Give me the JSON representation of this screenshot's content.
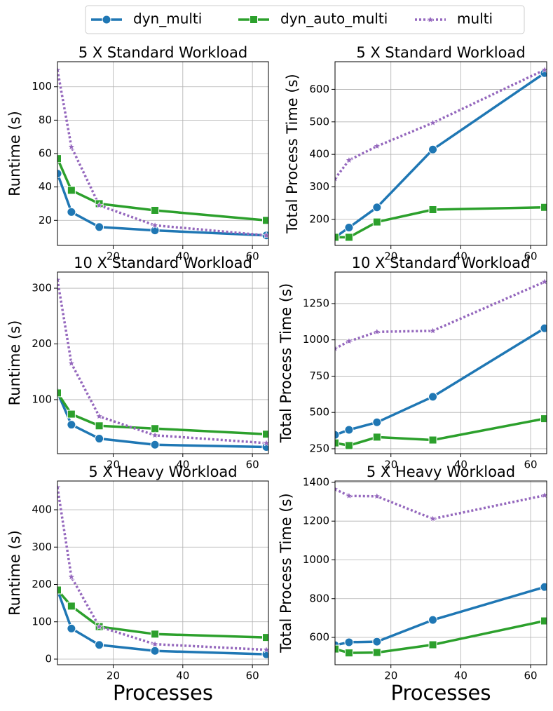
{
  "chart_data": [
    {
      "type": "line",
      "title": "5 X Standard Workload",
      "ylabel": "Runtime (s)",
      "x": [
        4,
        8,
        16,
        32,
        64
      ],
      "xlim": [
        4,
        64.6
      ],
      "xticks": [
        20,
        40,
        60
      ],
      "ylim": [
        5,
        115
      ],
      "yticks": [
        20,
        40,
        60,
        80,
        100
      ],
      "grid": true,
      "series": [
        {
          "name": "dyn_multi",
          "color": "#1f77b4",
          "marker": "circle",
          "linestyle": "solid",
          "values": [
            48,
            25,
            16,
            14,
            11
          ]
        },
        {
          "name": "dyn_auto_multi",
          "color": "#2ca02c",
          "marker": "square",
          "linestyle": "solid",
          "values": [
            57,
            38,
            30,
            26,
            20
          ]
        },
        {
          "name": "multi",
          "color": "#9467bd",
          "marker": "star",
          "linestyle": "dotted",
          "values": [
            110,
            64,
            29,
            17,
            11
          ]
        }
      ]
    },
    {
      "type": "line",
      "title": "5 X Standard Workload",
      "ylabel": "Total Process Time (s)",
      "x": [
        4,
        8,
        16,
        32,
        64
      ],
      "xlim": [
        4,
        64.6
      ],
      "xticks": [
        20,
        40,
        60
      ],
      "ylim": [
        120,
        685
      ],
      "yticks": [
        200,
        300,
        400,
        500,
        600
      ],
      "grid": true,
      "series": [
        {
          "name": "dyn_multi",
          "color": "#1f77b4",
          "marker": "circle",
          "linestyle": "solid",
          "values": [
            145,
            175,
            237,
            415,
            650
          ]
        },
        {
          "name": "dyn_auto_multi",
          "color": "#2ca02c",
          "marker": "square",
          "linestyle": "solid",
          "values": [
            145,
            145,
            192,
            230,
            237
          ]
        },
        {
          "name": "multi",
          "color": "#9467bd",
          "marker": "star",
          "linestyle": "dotted",
          "values": [
            325,
            382,
            425,
            497,
            660
          ]
        }
      ]
    },
    {
      "type": "line",
      "title": "10 X Standard Workload",
      "ylabel": "Runtime (s)",
      "x": [
        4,
        8,
        16,
        32,
        64
      ],
      "xlim": [
        4,
        64.6
      ],
      "xticks": [
        20,
        40,
        60
      ],
      "ylim": [
        3,
        329
      ],
      "yticks": [
        100,
        200,
        300
      ],
      "grid": true,
      "series": [
        {
          "name": "dyn_multi",
          "color": "#1f77b4",
          "marker": "circle",
          "linestyle": "solid",
          "values": [
            113,
            55,
            30,
            19,
            15
          ]
        },
        {
          "name": "dyn_auto_multi",
          "color": "#2ca02c",
          "marker": "square",
          "linestyle": "solid",
          "values": [
            112,
            74,
            53,
            48,
            38
          ]
        },
        {
          "name": "multi",
          "color": "#9467bd",
          "marker": "star",
          "linestyle": "dotted",
          "values": [
            315,
            165,
            70,
            36,
            22
          ]
        }
      ]
    },
    {
      "type": "line",
      "title": "10 X Standard Workload",
      "ylabel": "Total Process Time (s)",
      "x": [
        4,
        8,
        16,
        32,
        64
      ],
      "xlim": [
        4,
        64.6
      ],
      "xticks": [
        20,
        40,
        60
      ],
      "ylim": [
        216,
        1467
      ],
      "yticks": [
        250,
        500,
        750,
        1000,
        1250
      ],
      "grid": true,
      "series": [
        {
          "name": "dyn_multi",
          "color": "#1f77b4",
          "marker": "circle",
          "linestyle": "solid",
          "values": [
            345,
            380,
            432,
            608,
            1080
          ]
        },
        {
          "name": "dyn_auto_multi",
          "color": "#2ca02c",
          "marker": "square",
          "linestyle": "solid",
          "values": [
            290,
            272,
            330,
            310,
            457
          ]
        },
        {
          "name": "multi",
          "color": "#9467bd",
          "marker": "star",
          "linestyle": "dotted",
          "values": [
            940,
            990,
            1055,
            1062,
            1400
          ]
        }
      ]
    },
    {
      "type": "line",
      "title": "5 X Heavy Workload",
      "ylabel": "Runtime (s)",
      "xlabel": "Processes",
      "x": [
        4,
        8,
        16,
        32,
        64
      ],
      "xlim": [
        4,
        64.6
      ],
      "xticks": [
        20,
        40,
        60
      ],
      "ylim": [
        -15,
        477
      ],
      "yticks": [
        0,
        100,
        200,
        300,
        400
      ],
      "grid": true,
      "series": [
        {
          "name": "dyn_multi",
          "color": "#1f77b4",
          "marker": "circle",
          "linestyle": "solid",
          "values": [
            185,
            82,
            38,
            22,
            13
          ]
        },
        {
          "name": "dyn_auto_multi",
          "color": "#2ca02c",
          "marker": "square",
          "linestyle": "solid",
          "values": [
            185,
            142,
            87,
            67,
            58
          ]
        },
        {
          "name": "multi",
          "color": "#9467bd",
          "marker": "star",
          "linestyle": "dotted",
          "values": [
            460,
            220,
            87,
            40,
            25
          ]
        }
      ]
    },
    {
      "type": "line",
      "title": "5 X Heavy Workload",
      "ylabel": "Total Process Time (s)",
      "xlabel": "Processes",
      "x": [
        4,
        8,
        16,
        32,
        64
      ],
      "xlim": [
        4,
        64.6
      ],
      "xticks": [
        20,
        40,
        60
      ],
      "ylim": [
        459,
        1407
      ],
      "yticks": [
        600,
        800,
        1000,
        1200,
        1400
      ],
      "grid": true,
      "series": [
        {
          "name": "dyn_multi",
          "color": "#1f77b4",
          "marker": "circle",
          "linestyle": "solid",
          "values": [
            560,
            575,
            578,
            690,
            860
          ]
        },
        {
          "name": "dyn_auto_multi",
          "color": "#2ca02c",
          "marker": "square",
          "linestyle": "solid",
          "values": [
            540,
            520,
            522,
            562,
            685
          ]
        },
        {
          "name": "multi",
          "color": "#9467bd",
          "marker": "star",
          "linestyle": "dotted",
          "values": [
            1365,
            1330,
            1328,
            1212,
            1333
          ]
        }
      ]
    }
  ]
}
